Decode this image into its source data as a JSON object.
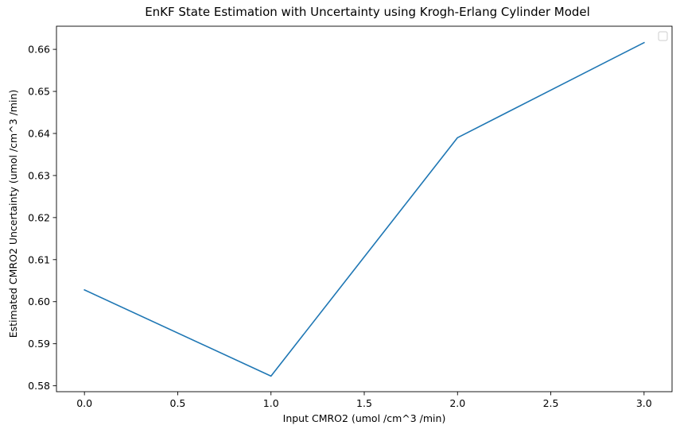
{
  "chart_data": {
    "type": "line",
    "title": "EnKF State Estimation with Uncertainty using Krogh-Erlang Cylinder Model",
    "xlabel": "Input CMRO2 (umol /cm^3 /min)",
    "ylabel": "Estimated CMRO2 Uncertainty (umol /cm^3 /min)",
    "xlim": [
      -0.15,
      3.15
    ],
    "ylim": [
      0.5786,
      0.6655
    ],
    "xticks": [
      0.0,
      0.5,
      1.0,
      1.5,
      2.0,
      2.5,
      3.0
    ],
    "xtick_labels": [
      "0.0",
      "0.5",
      "1.0",
      "1.5",
      "2.0",
      "2.5",
      "3.0"
    ],
    "yticks": [
      0.58,
      0.59,
      0.6,
      0.61,
      0.62,
      0.63,
      0.64,
      0.65,
      0.66
    ],
    "ytick_labels": [
      "0.58",
      "0.59",
      "0.60",
      "0.61",
      "0.62",
      "0.63",
      "0.64",
      "0.65",
      "0.66"
    ],
    "series": [
      {
        "x": [
          0,
          1,
          2,
          3
        ],
        "y": [
          0.6028,
          0.5823,
          0.639,
          0.6616
        ],
        "color": "#1f77b4"
      }
    ],
    "legend": "top-right",
    "legend_entries": [],
    "grid": false
  }
}
